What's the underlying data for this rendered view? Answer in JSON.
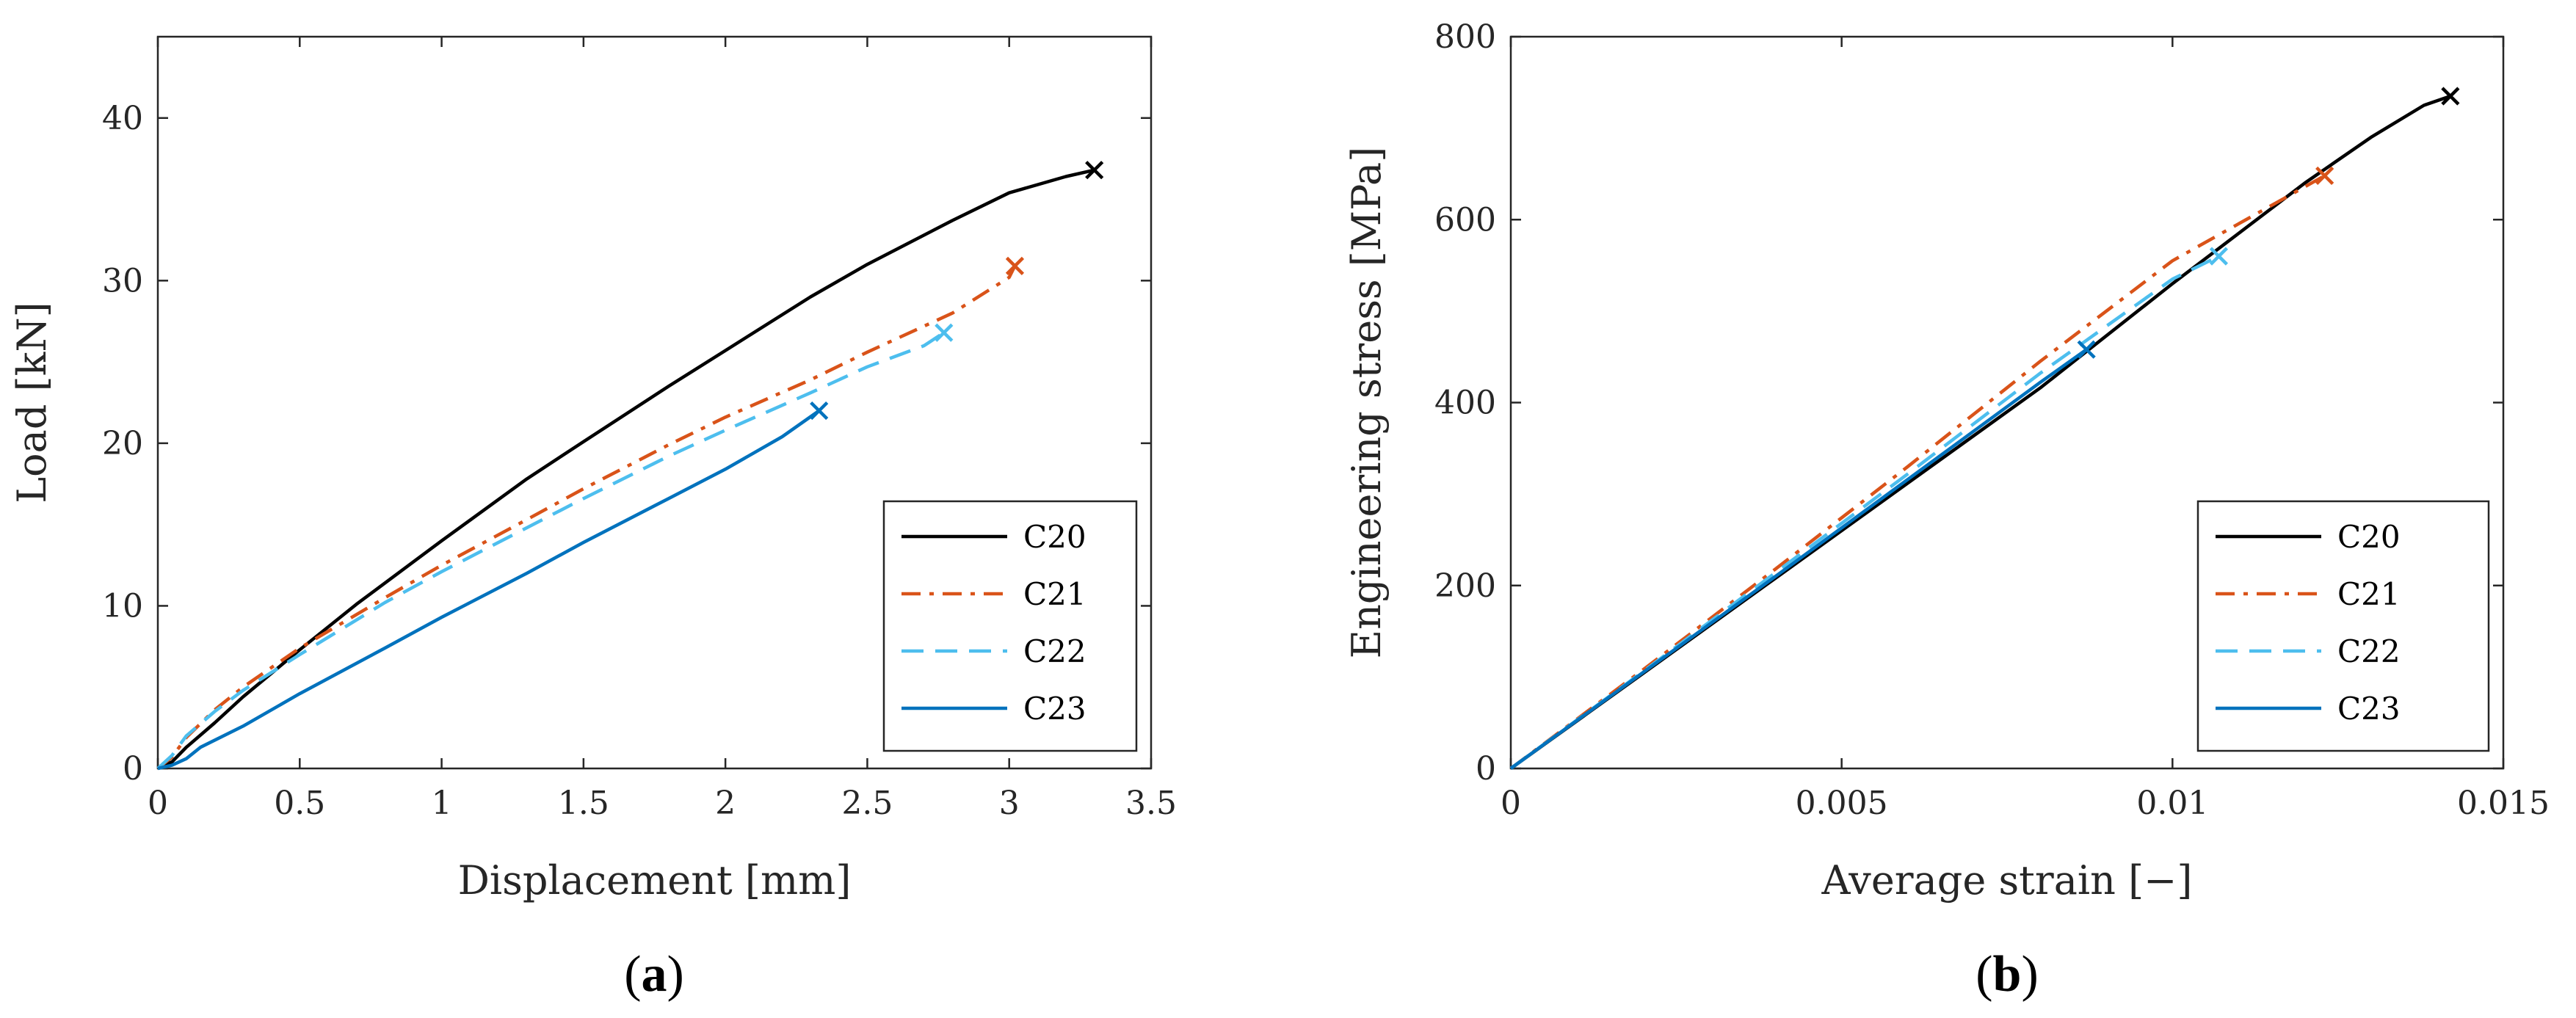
{
  "chart_data": [
    {
      "type": "line",
      "panel_label": "a",
      "xlabel": "Displacement [mm]",
      "ylabel": "Load [kN]",
      "xlim": [
        0,
        3.5
      ],
      "ylim": [
        0,
        45
      ],
      "xticks": [
        0,
        0.5,
        1,
        1.5,
        2,
        2.5,
        3,
        3.5
      ],
      "xtick_labels": [
        "0",
        "0.5",
        "1",
        "1.5",
        "2",
        "2.5",
        "3",
        "3.5"
      ],
      "yticks": [
        0,
        10,
        20,
        30,
        40
      ],
      "ytick_labels": [
        "0",
        "10",
        "20",
        "30",
        "40"
      ],
      "legend_position": "bottom-right",
      "series": [
        {
          "name": "C20",
          "color": "#000000",
          "dash": "solid",
          "x": [
            0,
            0.05,
            0.1,
            0.2,
            0.3,
            0.5,
            0.7,
            1.0,
            1.3,
            1.5,
            1.8,
            2.0,
            2.3,
            2.5,
            2.8,
            3.0,
            3.2,
            3.3
          ],
          "y": [
            0,
            0.4,
            1.3,
            2.8,
            4.4,
            7.3,
            10.1,
            14.0,
            17.8,
            20.1,
            23.5,
            25.7,
            29.0,
            31.0,
            33.7,
            35.4,
            36.4,
            36.8
          ],
          "end_marker": "x",
          "end_point": [
            3.3,
            36.8
          ]
        },
        {
          "name": "C21",
          "color": "#D95319",
          "dash": "dash-dot",
          "x": [
            0,
            0.05,
            0.1,
            0.2,
            0.3,
            0.5,
            0.8,
            1.0,
            1.3,
            1.5,
            1.8,
            2.0,
            2.3,
            2.5,
            2.8,
            3.0,
            3.02
          ],
          "y": [
            0,
            0.7,
            1.9,
            3.6,
            5.0,
            7.4,
            10.5,
            12.5,
            15.3,
            17.2,
            19.9,
            21.6,
            23.9,
            25.6,
            28.0,
            30.2,
            30.9
          ],
          "end_marker": "x",
          "end_point": [
            3.02,
            30.9
          ]
        },
        {
          "name": "C22",
          "color": "#4DBEEE",
          "dash": "dashed",
          "x": [
            0,
            0.05,
            0.1,
            0.2,
            0.3,
            0.5,
            0.8,
            1.0,
            1.3,
            1.5,
            1.8,
            2.0,
            2.3,
            2.5,
            2.7,
            2.77
          ],
          "y": [
            0,
            0.8,
            2.0,
            3.5,
            4.8,
            7.0,
            10.2,
            12.1,
            14.8,
            16.6,
            19.2,
            20.8,
            23.1,
            24.7,
            26.0,
            26.8
          ],
          "end_marker": "x",
          "end_point": [
            2.77,
            26.8
          ]
        },
        {
          "name": "C23",
          "color": "#0072BD",
          "dash": "solid",
          "x": [
            0,
            0.05,
            0.1,
            0.15,
            0.3,
            0.5,
            0.8,
            1.0,
            1.3,
            1.5,
            1.8,
            2.0,
            2.2,
            2.33
          ],
          "y": [
            0,
            0.2,
            0.6,
            1.3,
            2.6,
            4.6,
            7.4,
            9.3,
            12.0,
            13.9,
            16.6,
            18.4,
            20.4,
            22.0
          ],
          "end_marker": "x",
          "end_point": [
            2.33,
            22.0
          ]
        }
      ]
    },
    {
      "type": "line",
      "panel_label": "b",
      "xlabel": "Average strain [−]",
      "ylabel": "Engineering stress [MPa]",
      "xlim": [
        0,
        0.015
      ],
      "ylim": [
        0,
        800
      ],
      "xticks": [
        0,
        0.005,
        0.01,
        0.015
      ],
      "xtick_labels": [
        "0",
        "0.005",
        "0.01",
        "0.015"
      ],
      "yticks": [
        0,
        200,
        400,
        600,
        800
      ],
      "ytick_labels": [
        "0",
        "200",
        "400",
        "600",
        "800"
      ],
      "legend_position": "bottom-right",
      "series": [
        {
          "name": "C20",
          "color": "#000000",
          "dash": "solid",
          "x": [
            0,
            0.002,
            0.004,
            0.006,
            0.008,
            0.01,
            0.012,
            0.013,
            0.0138,
            0.0142
          ],
          "y": [
            0,
            104,
            208,
            312,
            416,
            530,
            640,
            690,
            725,
            735
          ],
          "end_marker": "x",
          "end_point": [
            0.0142,
            735
          ]
        },
        {
          "name": "C21",
          "color": "#D95319",
          "dash": "dash-dot",
          "x": [
            0,
            0.002,
            0.004,
            0.006,
            0.008,
            0.01,
            0.0123
          ],
          "y": [
            0,
            108,
            218,
            330,
            445,
            555,
            648
          ],
          "end_marker": "x",
          "end_point": [
            0.0123,
            648
          ]
        },
        {
          "name": "C22",
          "color": "#4DBEEE",
          "dash": "dashed",
          "x": [
            0,
            0.002,
            0.004,
            0.006,
            0.008,
            0.01,
            0.0107
          ],
          "y": [
            0,
            106,
            214,
            322,
            432,
            535,
            560
          ],
          "end_marker": "x",
          "end_point": [
            0.0107,
            560
          ]
        },
        {
          "name": "C23",
          "color": "#0072BD",
          "dash": "solid",
          "x": [
            0,
            0.002,
            0.004,
            0.006,
            0.008,
            0.0087
          ],
          "y": [
            0,
            105,
            210,
            316,
            422,
            458
          ],
          "end_marker": "x",
          "end_point": [
            0.0087,
            458
          ]
        }
      ]
    }
  ]
}
